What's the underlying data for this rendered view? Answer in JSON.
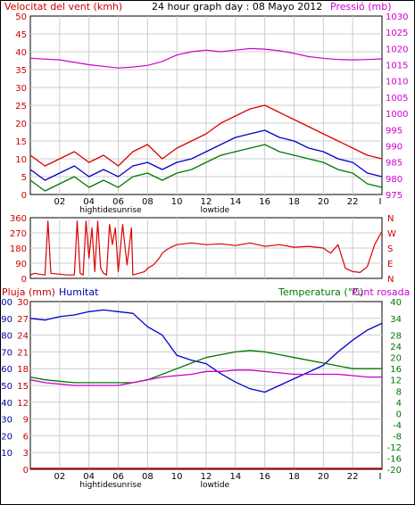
{
  "header": {
    "wind_speed_label": "Velocitat del vent (kmh)",
    "title": "24 hour graph day : 08 Mayo 2012",
    "pressure_label": "Pressió (mb)"
  },
  "lower_header": {
    "rain_label": "Pluja (mm)",
    "humidity_label": "Humitat",
    "temp_label": "Temperatura (°C)",
    "dew_label": "Punt rosada"
  },
  "hour_ticks": [
    "02",
    "04",
    "06",
    "08",
    "10",
    "12",
    "14",
    "16",
    "18",
    "20",
    "22",
    "I"
  ],
  "events": [
    {
      "label": "hightide",
      "hour": 4.5
    },
    {
      "label": "sunrise",
      "hour": 6.6
    },
    {
      "label": "lowtide",
      "hour": 12.6
    }
  ],
  "colors": {
    "wind_gust": "#dd0000",
    "wind_avg": "#0000cc",
    "wind_low": "#007700",
    "pressure": "#cc00cc",
    "direction": "#dd0000",
    "humidity": "#0000cc",
    "temperature": "#007700",
    "dewpoint": "#cc00cc",
    "rain": "#cc0000",
    "grid": "#cccccc"
  },
  "chart_data": [
    {
      "type": "line",
      "name": "wind_and_pressure",
      "xlim": [
        0,
        24
      ],
      "ylim": [
        0,
        50
      ],
      "y2lim": [
        975,
        1030
      ],
      "left_ticks": [
        "0",
        "5",
        "10",
        "15",
        "20",
        "25",
        "30",
        "35",
        "40",
        "45",
        "50"
      ],
      "right_ticks": [
        "975",
        "980",
        "985",
        "990",
        "995",
        "1000",
        "1005",
        "1010",
        "1015",
        "1020",
        "1025",
        "1030"
      ],
      "series": [
        {
          "key": "gust",
          "x": [
            0,
            1,
            2,
            3,
            4,
            5,
            6,
            7,
            8,
            9,
            10,
            11,
            12,
            13,
            14,
            15,
            16,
            17,
            18,
            19,
            20,
            21,
            22,
            23,
            24
          ],
          "y": [
            11,
            8,
            10,
            12,
            9,
            11,
            8,
            12,
            14,
            10,
            13,
            15,
            17,
            20,
            22,
            24,
            25,
            23,
            21,
            19,
            17,
            15,
            13,
            11,
            10
          ]
        },
        {
          "key": "avg",
          "x": [
            0,
            1,
            2,
            3,
            4,
            5,
            6,
            7,
            8,
            9,
            10,
            11,
            12,
            13,
            14,
            15,
            16,
            17,
            18,
            19,
            20,
            21,
            22,
            23,
            24
          ],
          "y": [
            7,
            4,
            6,
            8,
            5,
            7,
            5,
            8,
            9,
            7,
            9,
            10,
            12,
            14,
            16,
            17,
            18,
            16,
            15,
            13,
            12,
            10,
            9,
            6,
            5
          ]
        },
        {
          "key": "low",
          "x": [
            0,
            1,
            2,
            3,
            4,
            5,
            6,
            7,
            8,
            9,
            10,
            11,
            12,
            13,
            14,
            15,
            16,
            17,
            18,
            19,
            20,
            21,
            22,
            23,
            24
          ],
          "y": [
            4,
            1,
            3,
            5,
            2,
            4,
            2,
            5,
            6,
            4,
            6,
            7,
            9,
            11,
            12,
            13,
            14,
            12,
            11,
            10,
            9,
            7,
            6,
            3,
            2
          ]
        },
        {
          "key": "pressure",
          "x": [
            0,
            2,
            4,
            6,
            7,
            8,
            9,
            10,
            11,
            12,
            13,
            14,
            15,
            16,
            17,
            18,
            19,
            20,
            21,
            22,
            23,
            24
          ],
          "y": [
            1017,
            1016.5,
            1015,
            1014,
            1014.3,
            1014.8,
            1016,
            1018,
            1019,
            1019.5,
            1019,
            1019.5,
            1020,
            1019.8,
            1019.3,
            1018.5,
            1017.5,
            1017,
            1016.6,
            1016.5,
            1016.6,
            1016.8
          ]
        }
      ]
    },
    {
      "type": "line",
      "name": "wind_direction",
      "xlim": [
        0,
        24
      ],
      "ylim": [
        0,
        360
      ],
      "left_ticks": [
        "0",
        "90",
        "180",
        "270",
        "360"
      ],
      "right_ticks": [
        "N",
        "E",
        "S",
        "W",
        "N"
      ],
      "series": [
        {
          "key": "direction",
          "x": [
            0,
            0.3,
            0.6,
            1,
            1.2,
            1.4,
            2,
            2.5,
            3,
            3.2,
            3.4,
            3.6,
            3.8,
            4,
            4.2,
            4.4,
            4.6,
            4.8,
            5,
            5.2,
            5.4,
            5.6,
            5.8,
            6,
            6.3,
            6.6,
            6.9,
            7,
            7.2,
            7.4,
            7.8,
            8,
            8.4,
            8.8,
            9,
            9.3,
            9.6,
            10,
            11,
            12,
            13,
            14,
            15,
            16,
            17,
            18,
            19,
            20,
            20.5,
            21,
            21.5,
            22,
            22.5,
            23,
            23.5,
            24
          ],
          "y": [
            20,
            30,
            25,
            20,
            340,
            30,
            25,
            20,
            20,
            340,
            30,
            20,
            340,
            120,
            300,
            40,
            340,
            60,
            30,
            20,
            320,
            200,
            300,
            40,
            320,
            80,
            300,
            20,
            25,
            30,
            40,
            60,
            80,
            120,
            150,
            170,
            185,
            200,
            210,
            200,
            205,
            195,
            210,
            190,
            200,
            185,
            190,
            180,
            150,
            200,
            60,
            40,
            35,
            70,
            200,
            280
          ]
        }
      ]
    },
    {
      "type": "line",
      "name": "humidity_temperature",
      "xlim": [
        0,
        24
      ],
      "ylim": [
        0,
        30
      ],
      "y2lim": [
        -20,
        40
      ],
      "rain_ticks": [
        "0",
        "3",
        "6",
        "9",
        "12",
        "15",
        "18",
        "21",
        "24",
        "27",
        "30"
      ],
      "humidity_ticks": [
        "10",
        "20",
        "30",
        "40",
        "50",
        "60",
        "70",
        "80",
        "90",
        "100"
      ],
      "temp_ticks": [
        "-20",
        "-16",
        "-12",
        "-8",
        "-4",
        "0",
        "4",
        "8",
        "12",
        "16",
        "20",
        "24",
        "28",
        "34",
        "40"
      ],
      "series": [
        {
          "key": "humidity",
          "x": [
            0,
            1,
            2,
            3,
            4,
            5,
            6,
            7,
            8,
            9,
            10,
            11,
            12,
            13,
            14,
            15,
            16,
            17,
            18,
            19,
            20,
            21,
            22,
            23,
            24
          ],
          "y": [
            90,
            89,
            91,
            92,
            94,
            95,
            94,
            93,
            85,
            80,
            68,
            65,
            63,
            57,
            52,
            48,
            46,
            50,
            54,
            58,
            62,
            70,
            77,
            83,
            87
          ]
        },
        {
          "key": "temperature",
          "x": [
            0,
            1,
            2,
            3,
            4,
            5,
            6,
            7,
            8,
            9,
            10,
            11,
            12,
            13,
            14,
            15,
            16,
            17,
            18,
            19,
            20,
            21,
            22,
            23,
            24
          ],
          "y": [
            13,
            12,
            11.5,
            11,
            11,
            11,
            11,
            11,
            12,
            14,
            16,
            18,
            20,
            21,
            22,
            22.5,
            22,
            21,
            20,
            19,
            18,
            17,
            16,
            16,
            16
          ]
        },
        {
          "key": "dewpoint",
          "x": [
            0,
            1,
            2,
            3,
            4,
            5,
            6,
            7,
            8,
            9,
            10,
            11,
            12,
            13,
            14,
            15,
            16,
            17,
            18,
            19,
            20,
            21,
            22,
            23,
            24
          ],
          "y": [
            12,
            11,
            10.5,
            10,
            10,
            10,
            10,
            11,
            12,
            13,
            13.5,
            14,
            15,
            15,
            15.5,
            15.5,
            15,
            14.5,
            14,
            14,
            14,
            14,
            13.5,
            13,
            13
          ]
        },
        {
          "key": "rain",
          "x": [
            0,
            24
          ],
          "y": [
            0,
            0
          ]
        }
      ]
    }
  ]
}
